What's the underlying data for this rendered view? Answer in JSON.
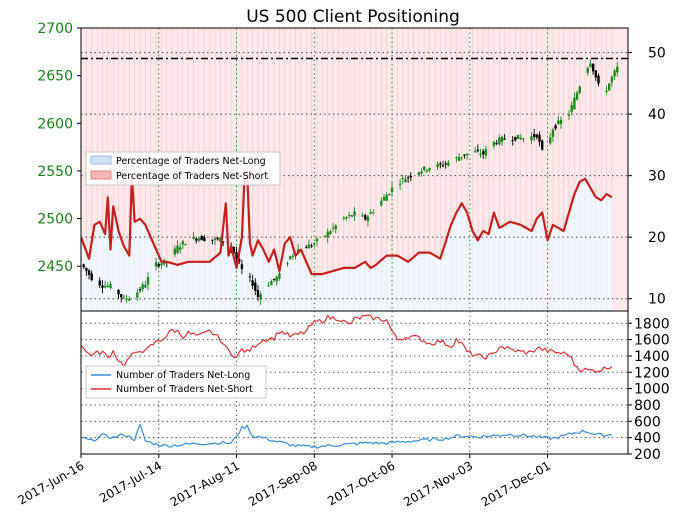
{
  "chart_data": [
    {
      "type": "candlestick+line",
      "title": "US 500 Client Positioning",
      "x_ticks": [
        "2017-Jun-16",
        "2017-Jul-14",
        "2017-Aug-11",
        "2017-Sep-08",
        "2017-Oct-06",
        "2017-Nov-03",
        "2017-Dec-01"
      ],
      "y_left_ticks": [
        2450,
        2500,
        2550,
        2600,
        2650,
        2700
      ],
      "y_left_lim": [
        2403,
        2700
      ],
      "y_right_ticks": [
        10,
        20,
        30,
        40,
        50
      ],
      "y_right_lim": [
        8,
        54
      ],
      "price_level_line": 2668,
      "legend": [
        "Percentage of Traders Net-Long",
        "Percentage of Traders Net-Short"
      ],
      "price_anchors": [
        [
          0,
          2452
        ],
        [
          4,
          2438
        ],
        [
          8,
          2430
        ],
        [
          12,
          2428
        ],
        [
          16,
          2415
        ],
        [
          20,
          2420
        ],
        [
          24,
          2432
        ],
        [
          28,
          2452
        ],
        [
          32,
          2455
        ],
        [
          36,
          2470
        ],
        [
          40,
          2478
        ],
        [
          44,
          2480
        ],
        [
          48,
          2478
        ],
        [
          52,
          2478
        ],
        [
          56,
          2470
        ],
        [
          60,
          2446
        ],
        [
          64,
          2432
        ],
        [
          66,
          2418
        ],
        [
          70,
          2432
        ],
        [
          74,
          2440
        ],
        [
          78,
          2460
        ],
        [
          82,
          2470
        ],
        [
          86,
          2472
        ],
        [
          90,
          2480
        ],
        [
          94,
          2490
        ],
        [
          98,
          2500
        ],
        [
          102,
          2505
        ],
        [
          106,
          2500
        ],
        [
          110,
          2512
        ],
        [
          114,
          2525
        ],
        [
          118,
          2538
        ],
        [
          122,
          2544
        ],
        [
          126,
          2550
        ],
        [
          130,
          2554
        ],
        [
          134,
          2556
        ],
        [
          138,
          2560
        ],
        [
          142,
          2566
        ],
        [
          146,
          2570
        ],
        [
          150,
          2568
        ],
        [
          154,
          2580
        ],
        [
          158,
          2584
        ],
        [
          162,
          2585
        ],
        [
          166,
          2584
        ],
        [
          170,
          2588
        ],
        [
          172,
          2570
        ],
        [
          174,
          2578
        ],
        [
          176,
          2595
        ],
        [
          178,
          2600
        ],
        [
          182,
          2610
        ],
        [
          184,
          2625
        ],
        [
          186,
          2640
        ],
        [
          188,
          2655
        ],
        [
          190,
          2665
        ],
        [
          192,
          2648
        ],
        [
          194,
          2630
        ],
        [
          196,
          2636
        ],
        [
          198,
          2648
        ],
        [
          200,
          2658
        ],
        [
          202,
          2668
        ]
      ],
      "net_short_pct_anchors": [
        [
          0,
          20
        ],
        [
          3,
          16.5
        ],
        [
          5,
          22
        ],
        [
          7,
          22.5
        ],
        [
          9,
          20.5
        ],
        [
          10,
          26.5
        ],
        [
          11,
          18
        ],
        [
          12,
          25
        ],
        [
          14,
          21
        ],
        [
          16,
          18.5
        ],
        [
          18,
          17
        ],
        [
          19,
          30
        ],
        [
          20,
          22.5
        ],
        [
          22,
          23
        ],
        [
          24,
          22
        ],
        [
          26,
          20
        ],
        [
          28,
          18
        ],
        [
          30,
          16
        ],
        [
          32,
          16
        ],
        [
          36,
          15.5
        ],
        [
          40,
          16
        ],
        [
          44,
          16
        ],
        [
          48,
          16
        ],
        [
          52,
          17.5
        ],
        [
          54,
          25.5
        ],
        [
          55,
          17
        ],
        [
          56,
          18.5
        ],
        [
          58,
          15
        ],
        [
          60,
          20
        ],
        [
          61,
          30
        ],
        [
          62,
          30.5
        ],
        [
          63,
          19
        ],
        [
          64,
          17
        ],
        [
          66,
          19.5
        ],
        [
          68,
          18
        ],
        [
          70,
          16
        ],
        [
          72,
          18
        ],
        [
          74,
          14.5
        ],
        [
          76,
          19
        ],
        [
          78,
          20
        ],
        [
          80,
          17
        ],
        [
          82,
          18
        ],
        [
          84,
          16
        ],
        [
          86,
          14
        ],
        [
          90,
          14
        ],
        [
          94,
          14.5
        ],
        [
          98,
          15
        ],
        [
          102,
          15
        ],
        [
          106,
          16
        ],
        [
          108,
          15
        ],
        [
          110,
          15.5
        ],
        [
          114,
          17
        ],
        [
          118,
          17
        ],
        [
          122,
          16
        ],
        [
          126,
          17.5
        ],
        [
          130,
          17.5
        ],
        [
          134,
          16.5
        ],
        [
          138,
          22
        ],
        [
          140,
          24
        ],
        [
          142,
          25.5
        ],
        [
          144,
          24
        ],
        [
          146,
          21
        ],
        [
          148,
          19.5
        ],
        [
          150,
          21
        ],
        [
          152,
          20.5
        ],
        [
          154,
          24
        ],
        [
          156,
          21.5
        ],
        [
          160,
          22.5
        ],
        [
          164,
          22
        ],
        [
          168,
          21
        ],
        [
          170,
          23
        ],
        [
          172,
          24
        ],
        [
          174,
          19.5
        ],
        [
          176,
          22
        ],
        [
          178,
          21.5
        ],
        [
          180,
          21
        ],
        [
          182,
          24
        ],
        [
          184,
          27
        ],
        [
          186,
          29
        ],
        [
          188,
          29.5
        ],
        [
          190,
          28
        ],
        [
          192,
          26.5
        ],
        [
          194,
          26
        ],
        [
          196,
          27
        ],
        [
          198,
          26.5
        ]
      ]
    },
    {
      "type": "line",
      "x_ticks": [
        "2017-Jun-16",
        "2017-Jul-14",
        "2017-Aug-11",
        "2017-Sep-08",
        "2017-Oct-06",
        "2017-Nov-03",
        "2017-Dec-01"
      ],
      "y_ticks": [
        200,
        400,
        600,
        800,
        1000,
        1200,
        1400,
        1600,
        1800
      ],
      "ylim": [
        200,
        1950
      ],
      "legend": [
        "Number of Traders Net-Long",
        "Number of Traders Net-Short"
      ],
      "series": [
        {
          "name": "Number of Traders Net-Long",
          "color": "#3a8ddc",
          "anchors": [
            [
              0,
              400
            ],
            [
              4,
              360
            ],
            [
              8,
              430
            ],
            [
              12,
              400
            ],
            [
              16,
              440
            ],
            [
              20,
              380
            ],
            [
              22,
              550
            ],
            [
              24,
              360
            ],
            [
              28,
              320
            ],
            [
              32,
              300
            ],
            [
              36,
              310
            ],
            [
              40,
              320
            ],
            [
              44,
              330
            ],
            [
              48,
              330
            ],
            [
              52,
              340
            ],
            [
              56,
              330
            ],
            [
              58,
              420
            ],
            [
              60,
              520
            ],
            [
              62,
              540
            ],
            [
              64,
              420
            ],
            [
              68,
              400
            ],
            [
              72,
              360
            ],
            [
              76,
              330
            ],
            [
              80,
              300
            ],
            [
              84,
              290
            ],
            [
              88,
              290
            ],
            [
              92,
              300
            ],
            [
              96,
              310
            ],
            [
              100,
              320
            ],
            [
              104,
              330
            ],
            [
              108,
              340
            ],
            [
              112,
              330
            ],
            [
              116,
              340
            ],
            [
              120,
              350
            ],
            [
              124,
              360
            ],
            [
              128,
              370
            ],
            [
              132,
              380
            ],
            [
              136,
              390
            ],
            [
              140,
              420
            ],
            [
              144,
              420
            ],
            [
              148,
              410
            ],
            [
              152,
              420
            ],
            [
              156,
              430
            ],
            [
              160,
              440
            ],
            [
              164,
              430
            ],
            [
              168,
              420
            ],
            [
              172,
              400
            ],
            [
              176,
              390
            ],
            [
              180,
              420
            ],
            [
              184,
              460
            ],
            [
              188,
              480
            ],
            [
              192,
              440
            ],
            [
              196,
              430
            ],
            [
              198,
              440
            ]
          ]
        },
        {
          "name": "Number of Traders Net-Short",
          "color": "#dd3333",
          "anchors": [
            [
              0,
              1550
            ],
            [
              2,
              1440
            ],
            [
              4,
              1420
            ],
            [
              8,
              1450
            ],
            [
              10,
              1380
            ],
            [
              12,
              1460
            ],
            [
              14,
              1350
            ],
            [
              16,
              1280
            ],
            [
              18,
              1380
            ],
            [
              20,
              1420
            ],
            [
              22,
              1480
            ],
            [
              24,
              1450
            ],
            [
              26,
              1520
            ],
            [
              28,
              1570
            ],
            [
              30,
              1600
            ],
            [
              32,
              1650
            ],
            [
              34,
              1720
            ],
            [
              36,
              1700
            ],
            [
              38,
              1640
            ],
            [
              40,
              1680
            ],
            [
              44,
              1640
            ],
            [
              48,
              1700
            ],
            [
              50,
              1660
            ],
            [
              52,
              1600
            ],
            [
              54,
              1500
            ],
            [
              56,
              1440
            ],
            [
              58,
              1380
            ],
            [
              60,
              1480
            ],
            [
              62,
              1450
            ],
            [
              64,
              1500
            ],
            [
              66,
              1560
            ],
            [
              68,
              1600
            ],
            [
              72,
              1620
            ],
            [
              74,
              1700
            ],
            [
              76,
              1680
            ],
            [
              78,
              1640
            ],
            [
              80,
              1650
            ],
            [
              84,
              1700
            ],
            [
              86,
              1780
            ],
            [
              88,
              1820
            ],
            [
              90,
              1830
            ],
            [
              92,
              1870
            ],
            [
              96,
              1860
            ],
            [
              98,
              1820
            ],
            [
              100,
              1780
            ],
            [
              102,
              1850
            ],
            [
              106,
              1880
            ],
            [
              110,
              1860
            ],
            [
              114,
              1840
            ],
            [
              116,
              1700
            ],
            [
              118,
              1600
            ],
            [
              122,
              1640
            ],
            [
              126,
              1620
            ],
            [
              130,
              1550
            ],
            [
              134,
              1580
            ],
            [
              138,
              1520
            ],
            [
              140,
              1600
            ],
            [
              142,
              1550
            ],
            [
              144,
              1450
            ],
            [
              146,
              1420
            ],
            [
              150,
              1380
            ],
            [
              154,
              1420
            ],
            [
              156,
              1520
            ],
            [
              160,
              1480
            ],
            [
              164,
              1450
            ],
            [
              168,
              1440
            ],
            [
              170,
              1500
            ],
            [
              174,
              1460
            ],
            [
              178,
              1440
            ],
            [
              182,
              1420
            ],
            [
              184,
              1300
            ],
            [
              186,
              1240
            ],
            [
              190,
              1220
            ],
            [
              194,
              1230
            ],
            [
              196,
              1260
            ],
            [
              198,
              1280
            ]
          ]
        }
      ]
    }
  ]
}
